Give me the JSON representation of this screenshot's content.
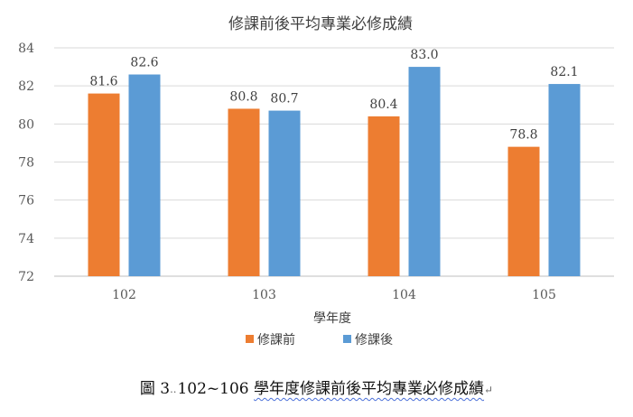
{
  "chart_data": {
    "type": "bar",
    "title": "修課前後平均專業必修成績",
    "xlabel": "學年度",
    "ylabel": "",
    "categories": [
      "102",
      "103",
      "104",
      "105"
    ],
    "series": [
      {
        "name": "修課前",
        "values": [
          81.6,
          80.8,
          80.4,
          78.8
        ],
        "color": "#ED7D31"
      },
      {
        "name": "修課後",
        "values": [
          82.6,
          80.7,
          83.0,
          82.1
        ],
        "color": "#5B9BD5"
      }
    ],
    "ylim": [
      72,
      84
    ],
    "yticks": [
      72,
      74,
      76,
      78,
      80,
      82,
      84
    ],
    "grid": true,
    "legend": "bottom",
    "data_labels": [
      "81.6",
      "82.6",
      "80.8",
      "80.7",
      "80.4",
      "83.0",
      "78.8",
      "82.1"
    ]
  },
  "caption": {
    "prefix": "圖 3",
    "dots": "‥",
    "range": "102~106",
    "text": "學年度修課前後平均專業必修成績",
    "mark": "↵"
  }
}
